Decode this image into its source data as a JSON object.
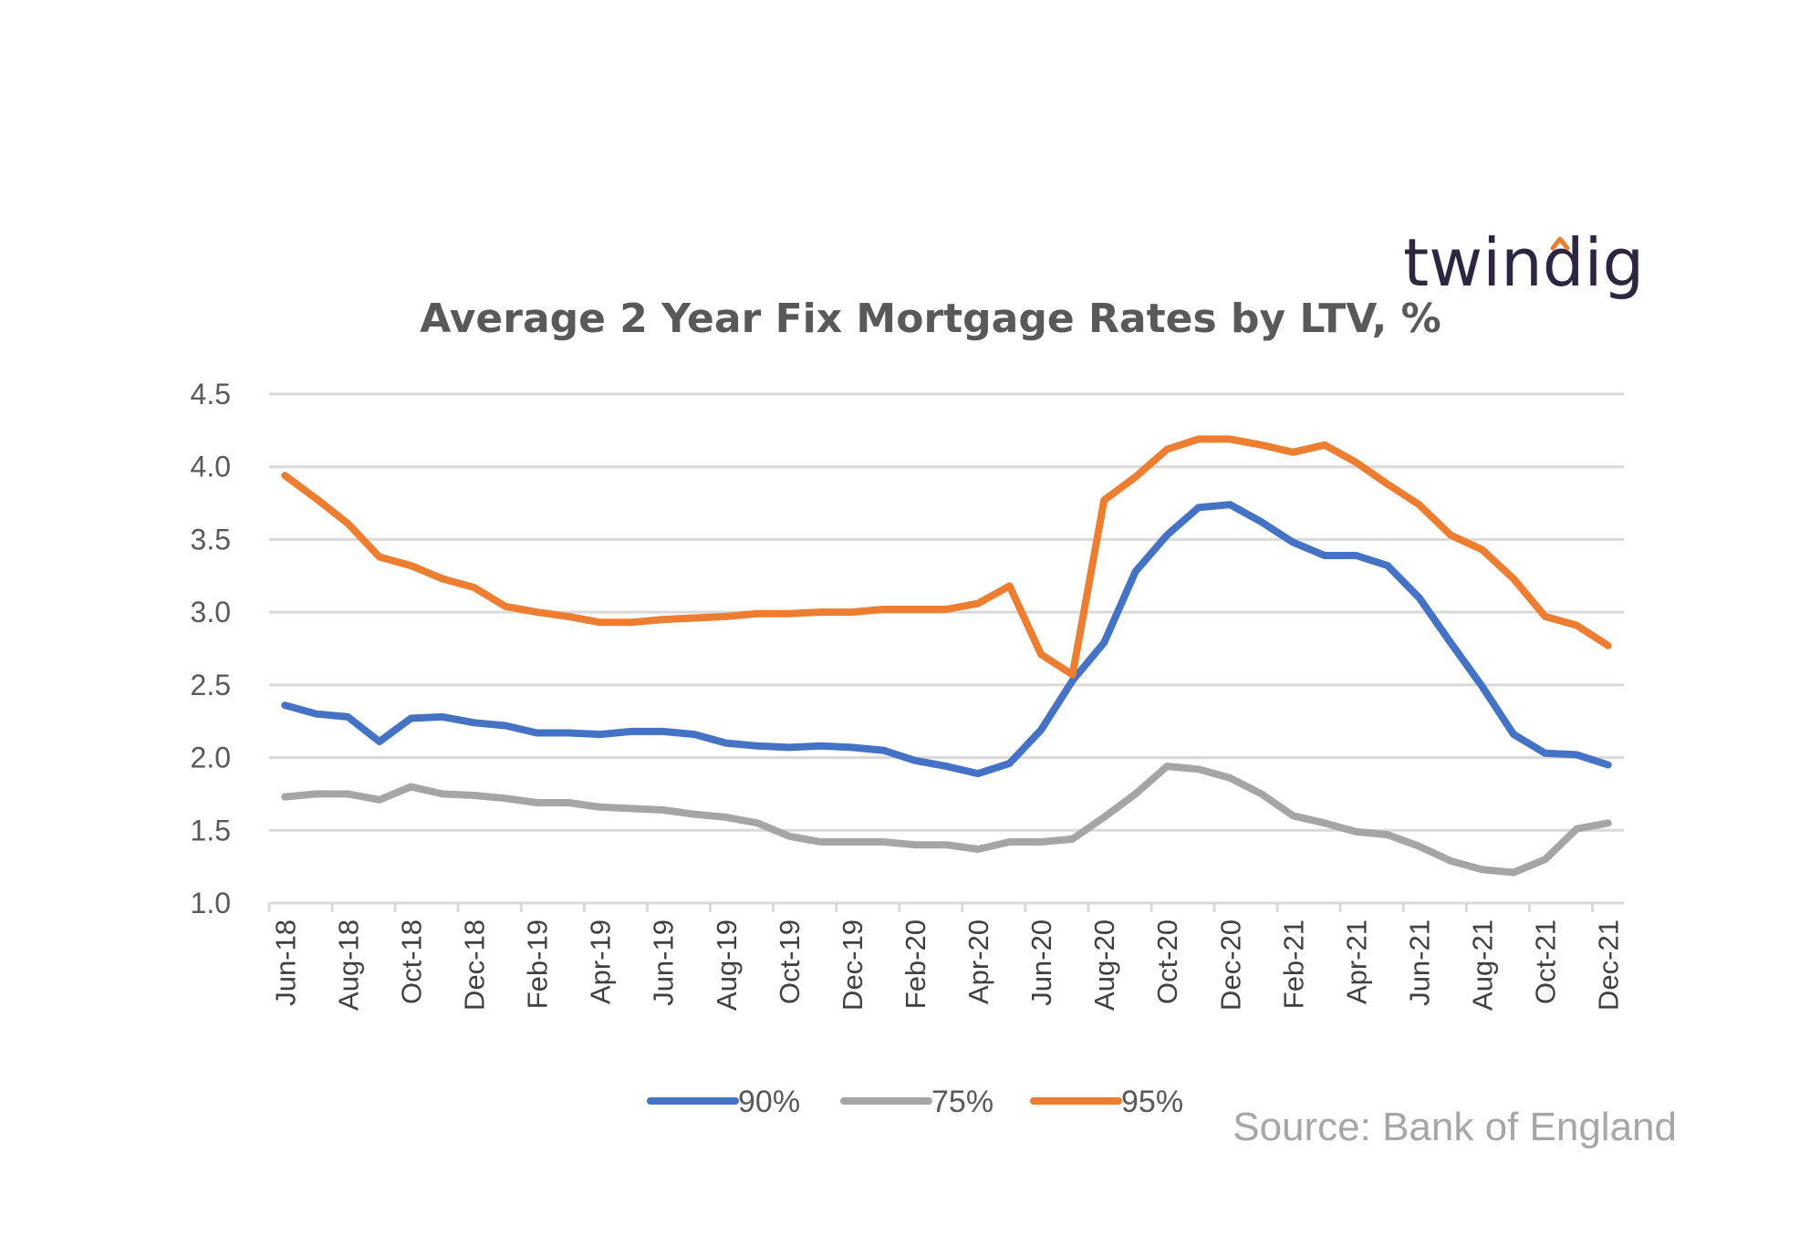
{
  "logo": {
    "text": "twindig",
    "accent_color": "#ed7d31",
    "text_color": "#2e2541"
  },
  "source_note": "Source: Bank of England",
  "chart_data": {
    "type": "line",
    "title": "Average 2 Year Fix Mortgage Rates by LTV, %",
    "xlabel": "",
    "ylabel": "",
    "ylim": [
      1.0,
      4.5
    ],
    "yticks": [
      "1.0",
      "1.5",
      "2.0",
      "2.5",
      "3.0",
      "3.5",
      "4.0",
      "4.5"
    ],
    "grid": true,
    "legend_position": "bottom",
    "x": [
      "Jun-18",
      "Jul-18",
      "Aug-18",
      "Sep-18",
      "Oct-18",
      "Nov-18",
      "Dec-18",
      "Jan-19",
      "Feb-19",
      "Mar-19",
      "Apr-19",
      "May-19",
      "Jun-19",
      "Jul-19",
      "Aug-19",
      "Sep-19",
      "Oct-19",
      "Nov-19",
      "Dec-19",
      "Jan-20",
      "Feb-20",
      "Mar-20",
      "Apr-20",
      "May-20",
      "Jun-20",
      "Jul-20",
      "Aug-20",
      "Sep-20",
      "Oct-20",
      "Nov-20",
      "Dec-20",
      "Jan-21",
      "Feb-21",
      "Mar-21",
      "Apr-21",
      "May-21",
      "Jun-21",
      "Jul-21",
      "Aug-21",
      "Sep-21",
      "Oct-21",
      "Nov-21",
      "Dec-21"
    ],
    "x_tick_labels": [
      "Jun-18",
      "Aug-18",
      "Oct-18",
      "Dec-18",
      "Feb-19",
      "Apr-19",
      "Jun-19",
      "Aug-19",
      "Oct-19",
      "Dec-19",
      "Feb-20",
      "Apr-20",
      "Jun-20",
      "Aug-20",
      "Oct-20",
      "Dec-20",
      "Feb-21",
      "Apr-21",
      "Jun-21",
      "Aug-21",
      "Oct-21",
      "Dec-21"
    ],
    "series": [
      {
        "name": "90%",
        "color": "#4472c4",
        "values": [
          2.36,
          2.3,
          2.28,
          2.11,
          2.27,
          2.28,
          2.24,
          2.22,
          2.17,
          2.17,
          2.16,
          2.18,
          2.18,
          2.16,
          2.1,
          2.08,
          2.07,
          2.08,
          2.07,
          2.05,
          1.98,
          1.94,
          1.89,
          1.96,
          2.19,
          2.53,
          2.79,
          3.28,
          3.53,
          3.72,
          3.74,
          3.62,
          3.48,
          3.39,
          3.39,
          3.32,
          3.1,
          2.79,
          2.49,
          2.16,
          2.03,
          2.02,
          1.95
        ]
      },
      {
        "name": "75%",
        "color": "#a5a5a5",
        "values": [
          1.73,
          1.75,
          1.75,
          1.71,
          1.8,
          1.75,
          1.74,
          1.72,
          1.69,
          1.69,
          1.66,
          1.65,
          1.64,
          1.61,
          1.59,
          1.55,
          1.46,
          1.42,
          1.42,
          1.42,
          1.4,
          1.4,
          1.37,
          1.42,
          1.42,
          1.44,
          1.59,
          1.75,
          1.94,
          1.92,
          1.86,
          1.75,
          1.6,
          1.55,
          1.49,
          1.47,
          1.39,
          1.29,
          1.23,
          1.21,
          1.3,
          1.51,
          1.55
        ]
      },
      {
        "name": "95%",
        "color": "#ed7d31",
        "values": [
          3.94,
          3.78,
          3.61,
          3.38,
          3.32,
          3.23,
          3.17,
          3.04,
          3.0,
          2.97,
          2.93,
          2.93,
          2.95,
          2.96,
          2.97,
          2.99,
          2.99,
          3.0,
          3.0,
          3.02,
          3.02,
          3.02,
          3.06,
          3.18,
          2.71,
          2.57,
          3.77,
          3.93,
          4.12,
          4.19,
          4.19,
          4.15,
          4.1,
          4.15,
          4.03,
          3.88,
          3.74,
          3.53,
          3.43,
          3.23,
          2.97,
          2.91,
          2.77
        ]
      }
    ]
  }
}
